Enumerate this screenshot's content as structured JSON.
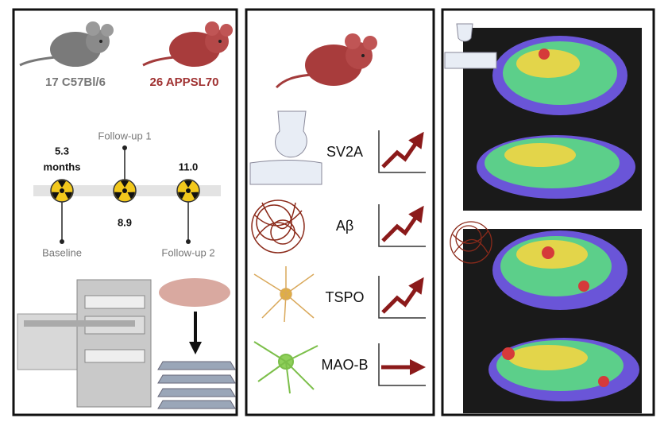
{
  "cohorts": [
    {
      "label": "17 C57Bl/6"
    },
    {
      "label": "26 APPSL70"
    }
  ],
  "timeline": {
    "points": [
      {
        "label": "Baseline",
        "time": "5.3",
        "unit": "months"
      },
      {
        "label": "Follow-up 1",
        "time": "8.9"
      },
      {
        "label": "Follow-up 2",
        "time": "11.0"
      }
    ]
  },
  "markers": [
    {
      "label": "SV2A",
      "trend": "up"
    },
    {
      "label": "Aβ",
      "trend": "up"
    },
    {
      "label": "TSPO",
      "trend": "up"
    },
    {
      "label": "MAO-B",
      "trend": "flat"
    }
  ]
}
